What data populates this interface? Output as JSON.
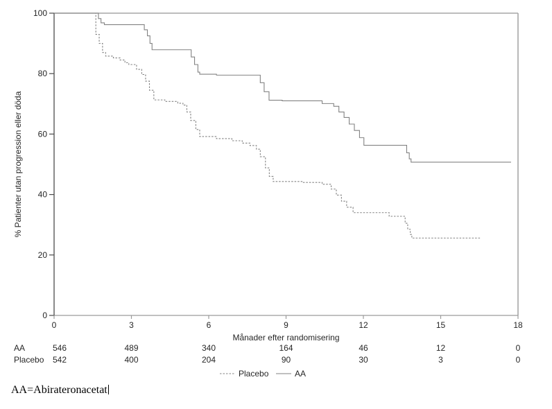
{
  "chart_data": {
    "type": "line",
    "subtype": "kaplan-meier-step",
    "title": "",
    "xlabel": "Månader efter randomisering",
    "ylabel": "% Patienter utan progression eller döda",
    "xlim": [
      0,
      18
    ],
    "ylim": [
      0,
      100
    ],
    "xticks": [
      "0",
      "3",
      "6",
      "9",
      "12",
      "15",
      "18"
    ],
    "xtick_values": [
      0,
      3,
      6,
      9,
      12,
      15,
      18
    ],
    "yticks": [
      "0",
      "20",
      "40",
      "60",
      "80",
      "100"
    ],
    "ytick_values": [
      0,
      20,
      40,
      60,
      80,
      100
    ],
    "grid": false,
    "legend_position": "bottom-center",
    "frame_color": "#a6a6a6",
    "axis_color": "#4a4a4a",
    "series": [
      {
        "name": "Placebo",
        "style": "dashed",
        "color": "#828282",
        "points": [
          [
            0,
            100
          ],
          [
            1.62,
            100
          ],
          [
            1.62,
            93
          ],
          [
            1.75,
            90
          ],
          [
            1.88,
            87
          ],
          [
            2.0,
            85.8
          ],
          [
            2.3,
            85.2
          ],
          [
            2.56,
            84.5
          ],
          [
            2.75,
            83.6
          ],
          [
            2.9,
            83.0
          ],
          [
            3.2,
            81.4
          ],
          [
            3.4,
            79.7
          ],
          [
            3.55,
            77.5
          ],
          [
            3.7,
            74.5
          ],
          [
            3.87,
            71.3
          ],
          [
            4.3,
            70.8
          ],
          [
            4.8,
            70.2
          ],
          [
            5.0,
            69.6
          ],
          [
            5.15,
            67.3
          ],
          [
            5.3,
            64.5
          ],
          [
            5.5,
            61.5
          ],
          [
            5.65,
            59.2
          ],
          [
            6.3,
            58.5
          ],
          [
            6.9,
            57.8
          ],
          [
            7.3,
            57.0
          ],
          [
            7.6,
            56.2
          ],
          [
            7.85,
            55.0
          ],
          [
            8.0,
            52.5
          ],
          [
            8.2,
            48.8
          ],
          [
            8.35,
            46.0
          ],
          [
            8.5,
            44.3
          ],
          [
            9.65,
            44.0
          ],
          [
            10.4,
            43.4
          ],
          [
            10.75,
            41.8
          ],
          [
            10.95,
            39.8
          ],
          [
            11.15,
            37.8
          ],
          [
            11.35,
            35.8
          ],
          [
            11.6,
            34.0
          ],
          [
            13.0,
            32.8
          ],
          [
            13.62,
            30.5
          ],
          [
            13.72,
            28.5
          ],
          [
            13.82,
            26.8
          ],
          [
            13.88,
            25.6
          ],
          [
            16.55,
            25.6
          ]
        ]
      },
      {
        "name": "AA",
        "style": "solid",
        "color": "#828282",
        "points": [
          [
            0,
            100
          ],
          [
            1.67,
            100
          ],
          [
            1.72,
            98.2
          ],
          [
            1.82,
            96.8
          ],
          [
            1.95,
            96.2
          ],
          [
            3.42,
            96.2
          ],
          [
            3.5,
            94.5
          ],
          [
            3.62,
            92.5
          ],
          [
            3.72,
            90.0
          ],
          [
            3.8,
            87.9
          ],
          [
            5.22,
            87.9
          ],
          [
            5.32,
            85.5
          ],
          [
            5.45,
            83.0
          ],
          [
            5.58,
            80.5
          ],
          [
            5.65,
            79.8
          ],
          [
            6.3,
            79.5
          ],
          [
            7.92,
            79.5
          ],
          [
            8.0,
            77.0
          ],
          [
            8.15,
            74.0
          ],
          [
            8.34,
            71.2
          ],
          [
            8.85,
            71.0
          ],
          [
            10.4,
            70.1
          ],
          [
            10.85,
            69.2
          ],
          [
            11.05,
            67.3
          ],
          [
            11.25,
            65.5
          ],
          [
            11.45,
            63.3
          ],
          [
            11.65,
            61.2
          ],
          [
            11.85,
            58.8
          ],
          [
            12.02,
            56.3
          ],
          [
            13.6,
            56.3
          ],
          [
            13.68,
            53.8
          ],
          [
            13.78,
            51.8
          ],
          [
            13.85,
            50.7
          ],
          [
            17.73,
            50.7
          ]
        ]
      }
    ],
    "legend": [
      {
        "label": "Placebo",
        "style": "dashed"
      },
      {
        "label": "AA",
        "style": "solid"
      }
    ],
    "at_risk_table": {
      "rows": [
        {
          "label": "AA",
          "values": [
            "546",
            "489",
            "340",
            "164",
            "46",
            "12",
            "0"
          ]
        },
        {
          "label": "Placebo",
          "values": [
            "542",
            "400",
            "204",
            "90",
            "30",
            "3",
            "0"
          ]
        }
      ]
    },
    "footnote": "AA=Abirateronacetat"
  }
}
